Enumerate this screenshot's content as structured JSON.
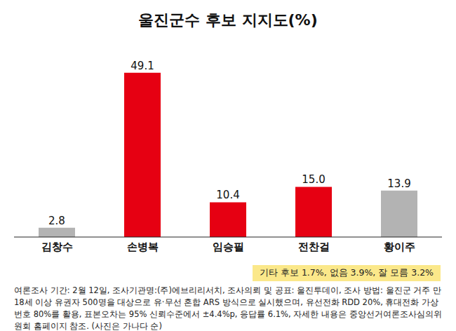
{
  "chart_data": {
    "type": "bar",
    "title": "울진군수 후보 지지도(%)",
    "categories": [
      "김창수",
      "손병복",
      "임승필",
      "전찬걸",
      "황이주"
    ],
    "values": [
      2.8,
      49.1,
      10.4,
      15.0,
      13.9
    ],
    "value_labels": [
      "2.8",
      "49.1",
      "10.4",
      "15.0",
      "13.9"
    ],
    "colors": [
      "#b3b3b3",
      "#e60012",
      "#e60012",
      "#e60012",
      "#b3b3b3"
    ],
    "ylim": [
      0,
      52
    ],
    "grid": false,
    "data_labels": true,
    "tick_labels": "x",
    "note": "기타 후보 1.7%, 없음 3.9%, 잘 모름 3.2%",
    "footnote": "여론조사 기간: 2월 12일, 조사기관명:(주)에브리리서치, 조사의뢰 및 공표: 울진투데이, 조사 방법: 울진군 거주 만18세 이상 유권자 500명을 대상으로 유·무선 혼합 ARS 방식으로 실시했으며, 유선전화 RDD 20%, 휴대전화 가상번호 80%를 활용, 표본오차는 95% 신뢰수준에서 ±4.4%p, 응답률 6.1%, 자세한 내용은 중앙선거여론조사심의위원회 홈페이지 참조. (사진은 가나다 순)"
  }
}
